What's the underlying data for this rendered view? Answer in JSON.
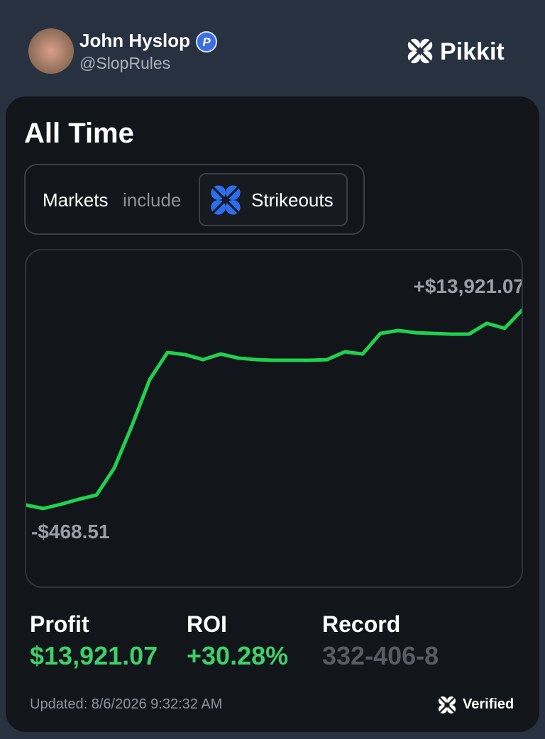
{
  "header": {
    "name": "John Hyslop",
    "handle": "@SlopRules",
    "brand": "Pikkit"
  },
  "card": {
    "title": "All Time",
    "filter": {
      "label": "Markets",
      "operator": "include",
      "value": "Strikeouts"
    },
    "stats": [
      {
        "label": "Profit",
        "value": "$13,921.07"
      },
      {
        "label": "ROI",
        "value": "+30.28%"
      },
      {
        "label": "Record",
        "value": "332-406-8"
      }
    ],
    "updated": "Updated: 8/6/2026 9:32:32 AM",
    "verified": "Verified"
  },
  "chart_data": {
    "type": "line",
    "color": "#1fd14f",
    "ylim": [
      -468.51,
      13921.07
    ],
    "values": [
      -210,
      -468.51,
      -160,
      200,
      510,
      2460,
      5540,
      8880,
      10840,
      10680,
      10320,
      10730,
      10430,
      10320,
      10270,
      10270,
      10270,
      10320,
      10890,
      10730,
      12220,
      12430,
      12270,
      12220,
      12170,
      12170,
      12950,
      12590,
      13921.07
    ],
    "annotations": [
      {
        "text": "+$13,921.07",
        "value": 13921.07
      },
      {
        "text": "-$468.51",
        "value": -468.51
      }
    ]
  }
}
